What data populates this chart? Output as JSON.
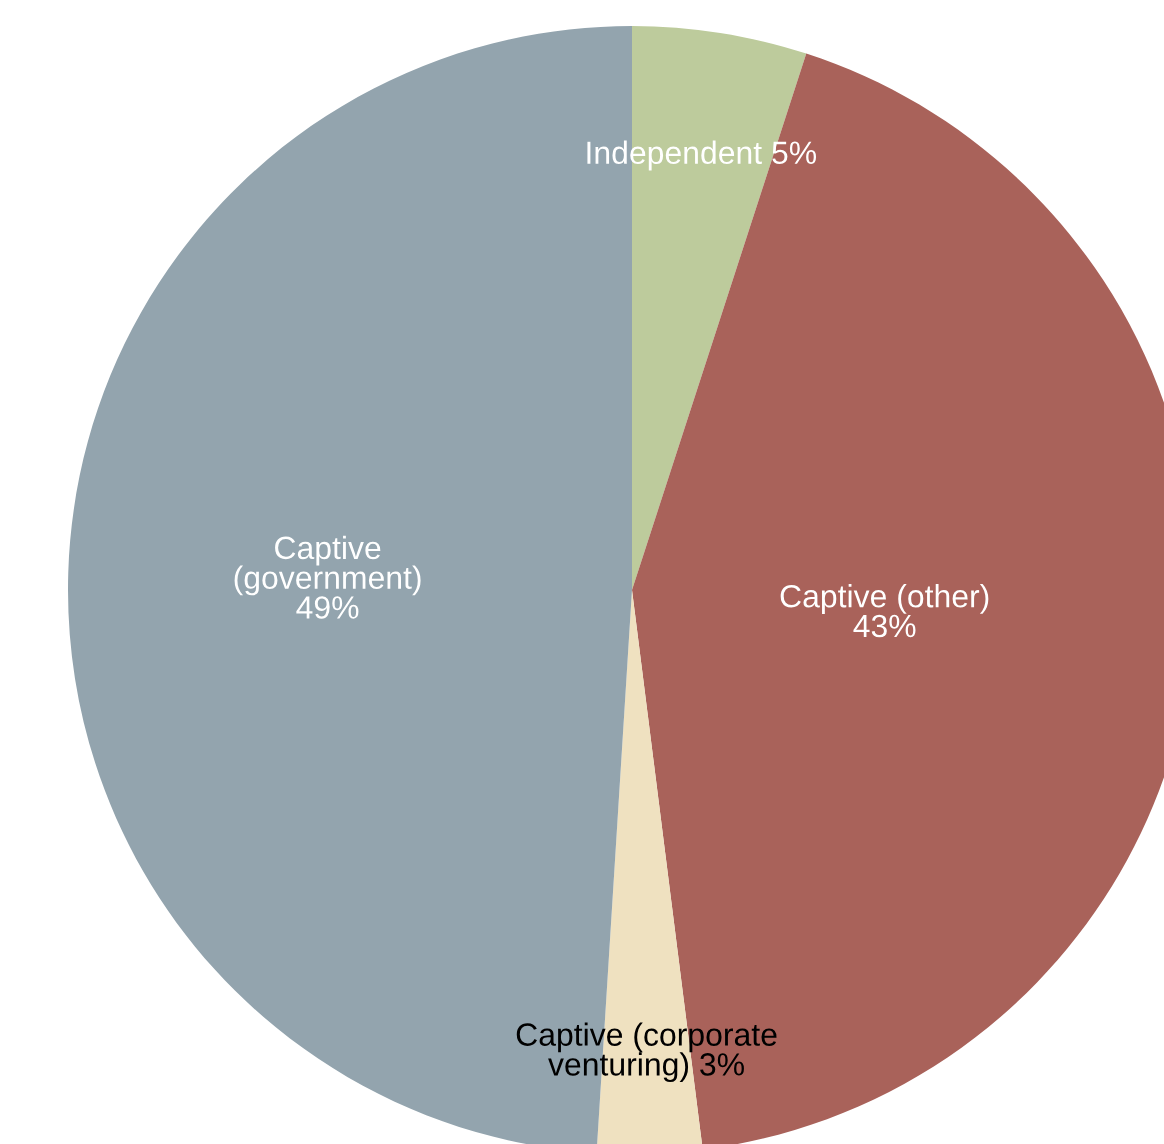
{
  "chart_data": {
    "type": "pie",
    "categories": [
      "Independent",
      "Captive (other)",
      "Captive (corporate\nventuring)",
      "Captive\n(government)"
    ],
    "values": [
      5,
      43,
      3,
      49
    ],
    "colors": [
      "#bdcb9c",
      "#a9625a",
      "#efe1c0",
      "#93a4ae"
    ],
    "value_labels": [
      "5%",
      "43%",
      "3%",
      "49%"
    ]
  }
}
